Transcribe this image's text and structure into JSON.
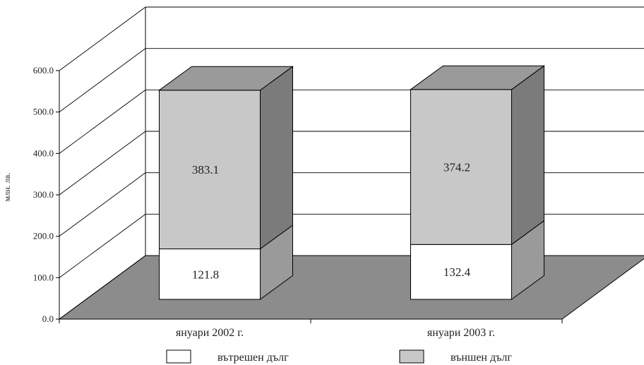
{
  "chart_data": {
    "type": "bar",
    "stacked": true,
    "three_d": true,
    "categories": [
      "януари 2002 г.",
      "януари 2003 г."
    ],
    "series": [
      {
        "name": "вътрешен дълг",
        "values": [
          121.8,
          132.4
        ],
        "color": "#ffffff",
        "side_color": "#9a9a9a",
        "top_color": "#a0a0a0"
      },
      {
        "name": "външен дълг",
        "values": [
          383.1,
          374.2
        ],
        "color": "#c8c8c8",
        "side_color": "#7b7b7b",
        "top_color": "#9a9a9a"
      }
    ],
    "value_labels": [
      [
        "121.8",
        "132.4"
      ],
      [
        "383.1",
        "374.2"
      ]
    ],
    "yticks": [
      "0.0",
      "100.0",
      "200.0",
      "300.0",
      "400.0",
      "500.0",
      "600.0"
    ],
    "ylim": [
      0,
      600
    ],
    "ylabel": "млн. лв.",
    "xlabel": "",
    "title": "",
    "grid": true,
    "legend_position": "bottom",
    "floor_color": "#8c8c8c",
    "grid_color": "#000000"
  }
}
